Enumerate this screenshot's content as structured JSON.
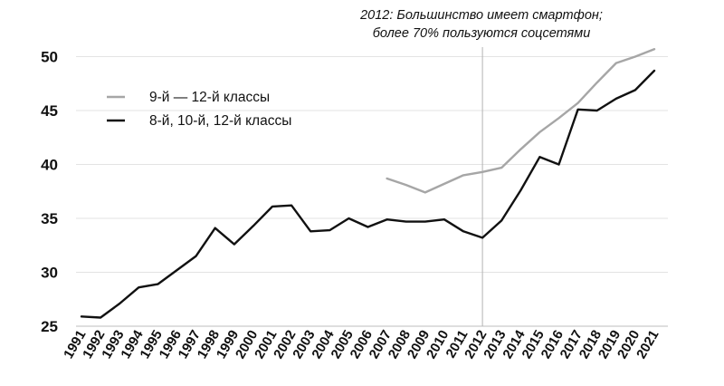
{
  "chart_data": {
    "type": "line",
    "title": "",
    "xlabel": "",
    "ylabel": "",
    "ylim": [
      25,
      52
    ],
    "yticks": [
      25,
      30,
      35,
      40,
      45,
      50
    ],
    "grid": "horizontal",
    "legend_position": "top-left",
    "x": [
      "1991",
      "1992",
      "1993",
      "1994",
      "1995",
      "1996",
      "1997",
      "1998",
      "1999",
      "2000",
      "2001",
      "2002",
      "2003",
      "2004",
      "2005",
      "2006",
      "2007",
      "2008",
      "2009",
      "2010",
      "2011",
      "2012",
      "2013",
      "2014",
      "2015",
      "2016",
      "2017",
      "2018",
      "2019",
      "2020",
      "2021"
    ],
    "series": [
      {
        "name": "9-й — 12-й классы",
        "color": "#a6a6a6",
        "values": [
          null,
          null,
          null,
          null,
          null,
          null,
          null,
          null,
          null,
          null,
          null,
          null,
          null,
          null,
          null,
          null,
          38.7,
          38.1,
          37.4,
          38.2,
          39.0,
          39.3,
          39.7,
          41.4,
          43.0,
          44.3,
          45.7,
          47.6,
          49.4,
          50.0,
          50.7
        ]
      },
      {
        "name": "8-й, 10-й, 12-й классы",
        "color": "#111111",
        "values": [
          25.9,
          25.8,
          27.1,
          28.6,
          28.9,
          30.2,
          31.5,
          34.1,
          32.6,
          34.3,
          36.1,
          36.2,
          33.8,
          33.9,
          35.0,
          34.2,
          34.9,
          34.7,
          34.7,
          34.9,
          33.8,
          33.2,
          34.8,
          37.6,
          40.7,
          40.0,
          45.1,
          45.0,
          46.1,
          46.9,
          48.7
        ]
      }
    ],
    "annotation": {
      "x": "2012",
      "line1": "2012: Большинство имеет смартфон;",
      "line2": "более 70% пользуются соцсетями"
    }
  }
}
